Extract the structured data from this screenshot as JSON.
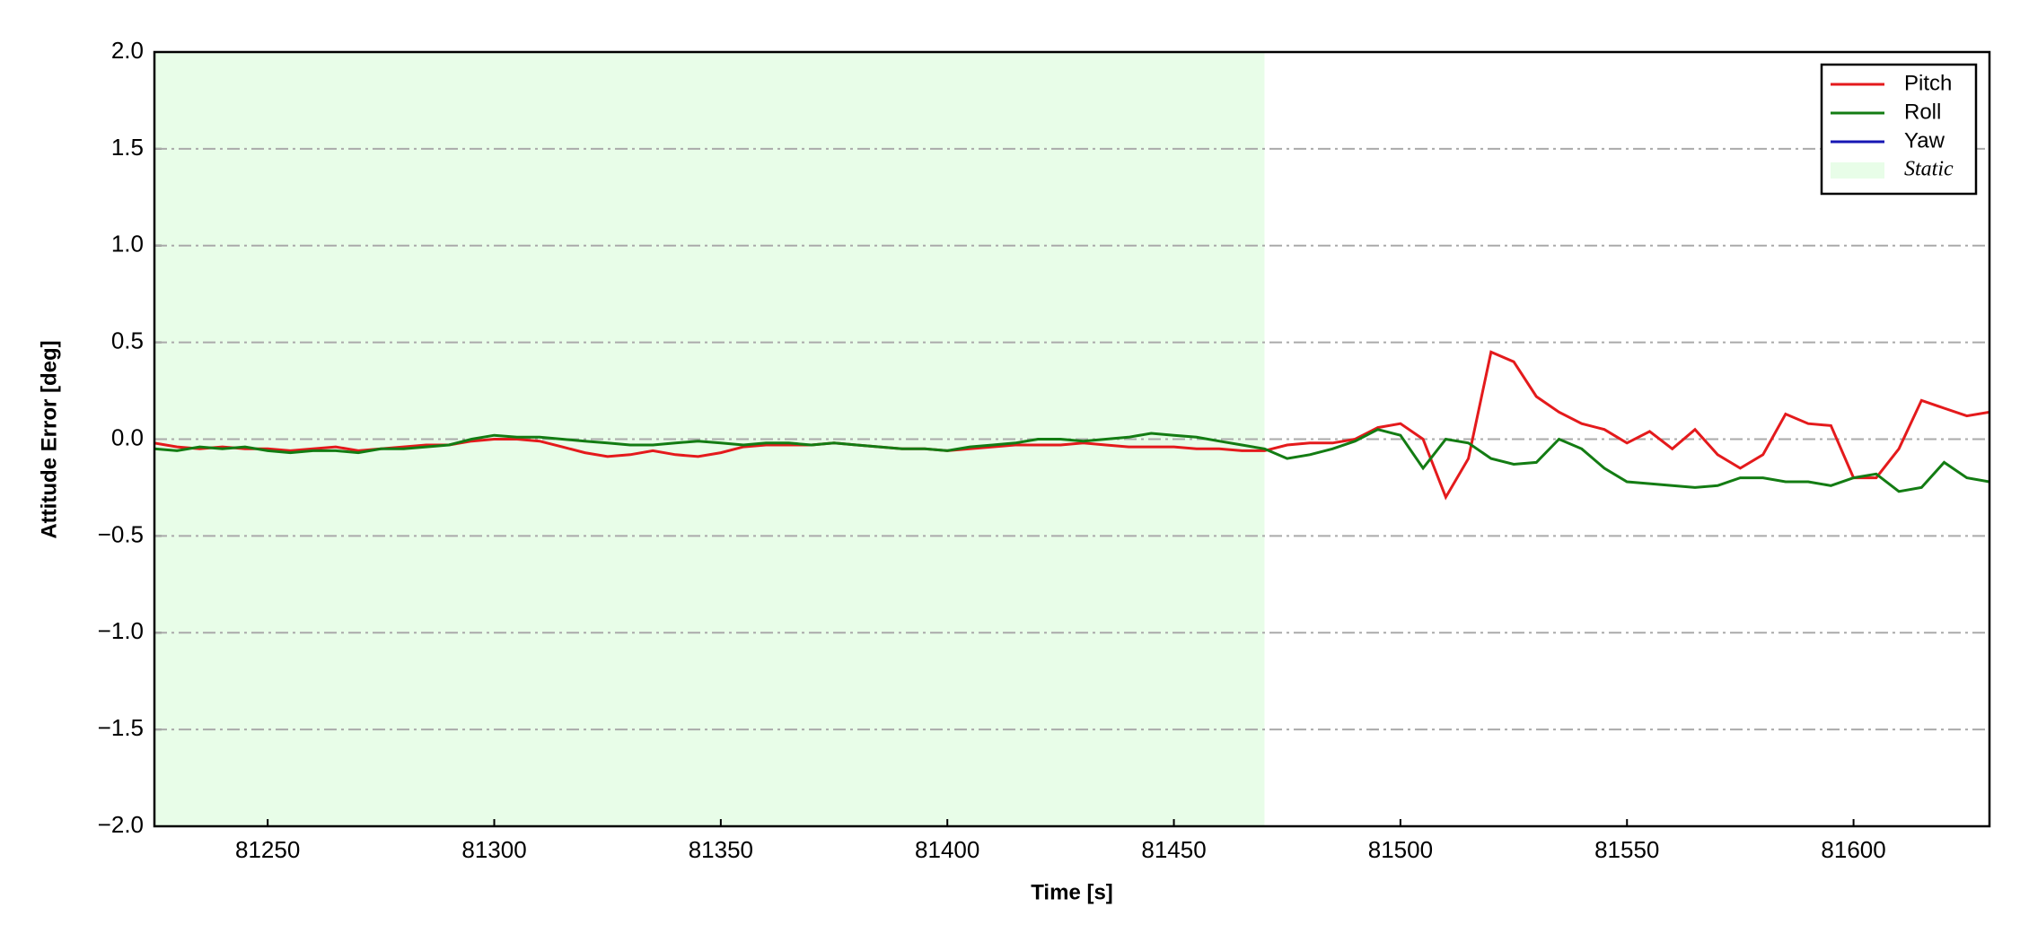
{
  "chart_data": {
    "type": "line",
    "xlabel": "Time [s]",
    "ylabel": "Attitude Error [deg]",
    "x": [
      81225,
      81230,
      81235,
      81240,
      81245,
      81250,
      81255,
      81260,
      81265,
      81270,
      81275,
      81280,
      81285,
      81290,
      81295,
      81300,
      81305,
      81310,
      81315,
      81320,
      81325,
      81330,
      81335,
      81340,
      81345,
      81350,
      81355,
      81360,
      81365,
      81370,
      81375,
      81380,
      81385,
      81390,
      81395,
      81400,
      81405,
      81410,
      81415,
      81420,
      81425,
      81430,
      81435,
      81440,
      81445,
      81450,
      81455,
      81460,
      81465,
      81470,
      81475,
      81480,
      81485,
      81490,
      81495,
      81500,
      81505,
      81510,
      81515,
      81520,
      81525,
      81530,
      81535,
      81540,
      81545,
      81550,
      81555,
      81560,
      81565,
      81570,
      81575,
      81580,
      81585,
      81590,
      81595,
      81600,
      81605,
      81610,
      81615,
      81620,
      81625,
      81630
    ],
    "series": [
      {
        "name": "Pitch",
        "color": "#e41a1c",
        "values": [
          -0.02,
          -0.04,
          -0.05,
          -0.04,
          -0.05,
          -0.05,
          -0.06,
          -0.05,
          -0.04,
          -0.06,
          -0.05,
          -0.04,
          -0.03,
          -0.03,
          -0.01,
          0.0,
          0.0,
          -0.01,
          -0.04,
          -0.07,
          -0.09,
          -0.08,
          -0.06,
          -0.08,
          -0.09,
          -0.07,
          -0.04,
          -0.03,
          -0.03,
          -0.03,
          -0.02,
          -0.03,
          -0.04,
          -0.05,
          -0.05,
          -0.06,
          -0.05,
          -0.04,
          -0.03,
          -0.03,
          -0.03,
          -0.02,
          -0.03,
          -0.04,
          -0.04,
          -0.04,
          -0.05,
          -0.05,
          -0.06,
          -0.06,
          -0.03,
          -0.02,
          -0.02,
          0.0,
          0.06,
          0.08,
          0.0,
          -0.3,
          -0.1,
          0.45,
          0.4,
          0.22,
          0.14,
          0.08,
          0.05,
          -0.02,
          0.04,
          -0.05,
          0.05,
          -0.08,
          -0.15,
          -0.08,
          0.13,
          0.08,
          0.07,
          -0.2,
          -0.2,
          -0.05,
          0.2,
          0.16,
          0.12,
          0.14
        ]
      },
      {
        "name": "Roll",
        "color": "#137c13",
        "values": [
          -0.05,
          -0.06,
          -0.04,
          -0.05,
          -0.04,
          -0.06,
          -0.07,
          -0.06,
          -0.06,
          -0.07,
          -0.05,
          -0.05,
          -0.04,
          -0.03,
          0.0,
          0.02,
          0.01,
          0.01,
          0.0,
          -0.01,
          -0.02,
          -0.03,
          -0.03,
          -0.02,
          -0.01,
          -0.02,
          -0.03,
          -0.02,
          -0.02,
          -0.03,
          -0.02,
          -0.03,
          -0.04,
          -0.05,
          -0.05,
          -0.06,
          -0.04,
          -0.03,
          -0.02,
          0.0,
          0.0,
          -0.01,
          0.0,
          0.01,
          0.03,
          0.02,
          0.01,
          -0.01,
          -0.03,
          -0.05,
          -0.1,
          -0.08,
          -0.05,
          -0.01,
          0.05,
          0.02,
          -0.15,
          0.0,
          -0.02,
          -0.1,
          -0.13,
          -0.12,
          0.0,
          -0.05,
          -0.15,
          -0.22,
          -0.23,
          -0.24,
          -0.25,
          -0.24,
          -0.2,
          -0.2,
          -0.22,
          -0.22,
          -0.24,
          -0.2,
          -0.18,
          -0.27,
          -0.25,
          -0.12,
          -0.2,
          -0.22
        ]
      },
      {
        "name": "Yaw",
        "color": "#1616b4",
        "values": [
          null,
          null,
          null,
          null,
          null,
          null,
          null,
          null,
          null,
          null,
          null,
          null,
          null,
          null,
          null,
          null,
          null,
          null,
          null,
          null,
          null,
          null,
          null,
          null,
          null,
          null,
          null,
          null,
          null,
          null,
          null,
          null,
          null,
          null,
          null,
          null,
          null,
          null,
          null,
          null,
          null,
          null,
          null,
          null,
          null,
          null,
          null,
          null,
          null,
          null,
          null,
          null,
          null,
          null,
          null,
          null,
          null,
          null,
          null,
          null,
          null,
          null,
          null,
          null,
          null,
          null,
          null,
          null,
          null,
          null,
          null,
          null,
          null,
          null,
          null,
          null,
          null,
          null,
          null,
          null,
          null,
          null
        ]
      }
    ],
    "span": {
      "name": "Static",
      "color": "#e8fde8",
      "x0": 81225,
      "x1": 81470
    },
    "xlim": [
      81225,
      81630
    ],
    "ylim": [
      -2.0,
      2.0
    ],
    "xticks": [
      81250,
      81300,
      81350,
      81400,
      81450,
      81500,
      81550,
      81600
    ],
    "yticks": [
      {
        "value": -2.0,
        "label": "−2.0"
      },
      {
        "value": -1.5,
        "label": "−1.5"
      },
      {
        "value": -1.0,
        "label": "−1.0"
      },
      {
        "value": -0.5,
        "label": "−0.5"
      },
      {
        "value": 0.0,
        "label": "0.0"
      },
      {
        "value": 0.5,
        "label": "0.5"
      },
      {
        "value": 1.0,
        "label": "1.0"
      },
      {
        "value": 1.5,
        "label": "1.5"
      },
      {
        "value": 2.0,
        "label": "2.0"
      }
    ],
    "grid": true,
    "legend": "upper right"
  }
}
